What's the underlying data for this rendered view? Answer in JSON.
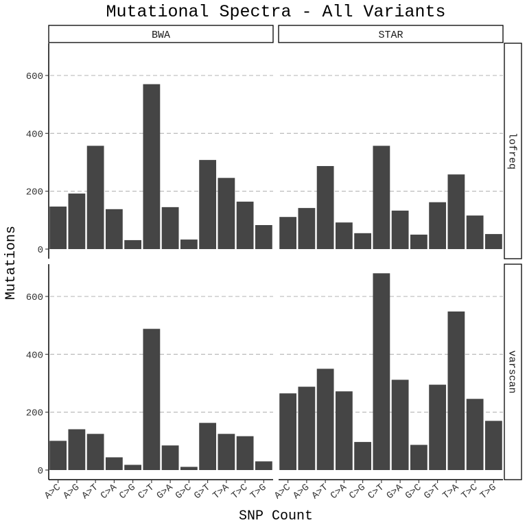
{
  "chart_data": {
    "type": "bar",
    "title": "Mutational Spectra - All Variants",
    "xlabel": "SNP Count",
    "ylabel": "Mutations",
    "categories": [
      "A>C",
      "A>G",
      "A>T",
      "C>A",
      "C>G",
      "C>T",
      "G>A",
      "G>C",
      "G>T",
      "T>A",
      "T>C",
      "T>G"
    ],
    "ylim": [
      0,
      720
    ],
    "yticks": [
      0,
      200,
      400,
      600
    ],
    "grid": "horizontal dashed",
    "facet_cols": [
      "BWA",
      "STAR"
    ],
    "facet_rows": [
      "lofreq",
      "varscan"
    ],
    "panels": [
      {
        "row": "lofreq",
        "col": "BWA",
        "values": [
          147,
          192,
          357,
          138,
          31,
          570,
          145,
          33,
          308,
          246,
          164,
          83
        ]
      },
      {
        "row": "lofreq",
        "col": "STAR",
        "values": [
          111,
          142,
          287,
          92,
          55,
          357,
          133,
          50,
          162,
          258,
          116,
          52
        ]
      },
      {
        "row": "varscan",
        "col": "BWA",
        "values": [
          101,
          141,
          125,
          44,
          18,
          488,
          85,
          11,
          163,
          125,
          117,
          30
        ]
      },
      {
        "row": "varscan",
        "col": "STAR",
        "values": [
          265,
          288,
          350,
          272,
          97,
          680,
          312,
          87,
          295,
          548,
          246,
          170
        ]
      }
    ]
  }
}
